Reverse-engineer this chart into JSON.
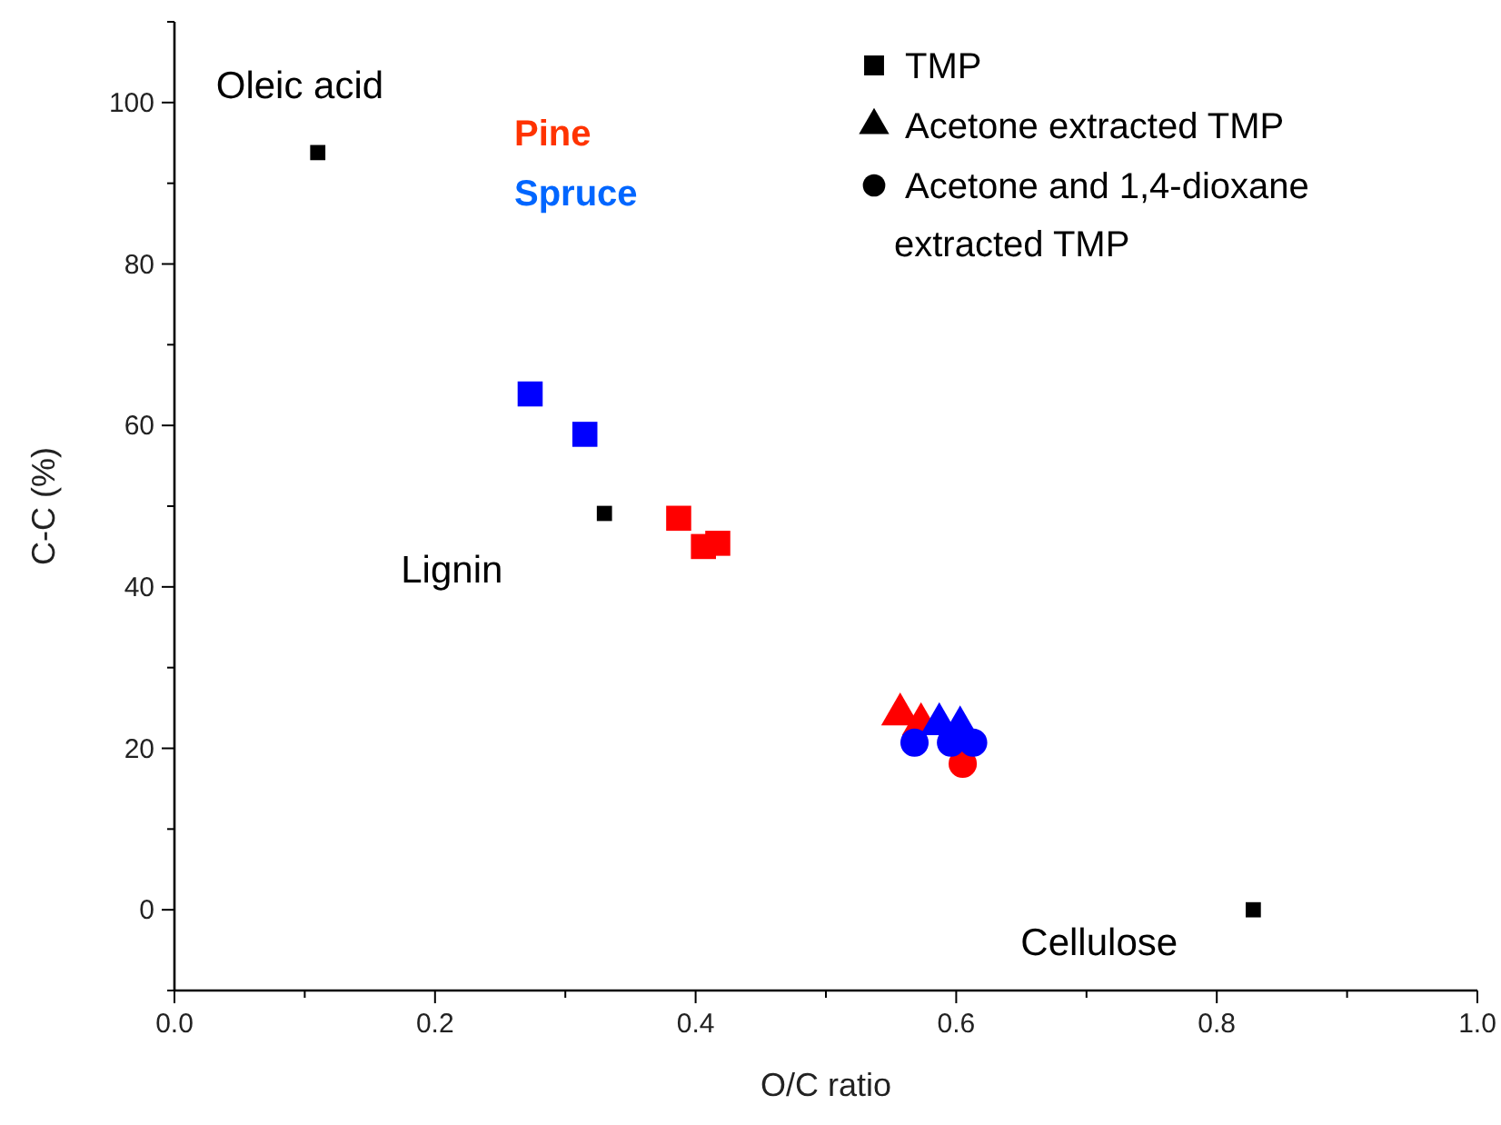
{
  "chart_data": {
    "type": "scatter",
    "xlabel": "O/C ratio",
    "ylabel": "C-C (%)",
    "xlim": [
      0,
      1
    ],
    "ylim": [
      -10,
      110
    ],
    "xticks": [
      {
        "value": 0,
        "label": "0.0"
      },
      {
        "value": 0.1,
        "label": null
      },
      {
        "value": 0.2,
        "label": "0.2"
      },
      {
        "value": 0.3,
        "label": null
      },
      {
        "value": 0.4,
        "label": "0.4"
      },
      {
        "value": 0.5,
        "label": null
      },
      {
        "value": 0.6,
        "label": "0.6"
      },
      {
        "value": 0.7,
        "label": null
      },
      {
        "value": 0.8,
        "label": "0.8"
      },
      {
        "value": 0.9,
        "label": null
      },
      {
        "value": 1,
        "label": "1.0"
      }
    ],
    "yticks": [
      {
        "value": -10,
        "label": null
      },
      0,
      {
        "value": 10,
        "label": null
      },
      20,
      {
        "value": 30,
        "label": null
      },
      40,
      {
        "value": 50,
        "label": null
      },
      60,
      {
        "value": 70,
        "label": null
      },
      80,
      {
        "value": 90,
        "label": null
      },
      100,
      {
        "value": 110,
        "label": null
      }
    ],
    "grid": false,
    "series": [
      {
        "marker": "square",
        "color": "#000000",
        "x": [
          0.11,
          0.33,
          0.828
        ],
        "values": [
          93.8,
          49.1,
          0
        ]
      },
      {
        "marker": "square",
        "x": [
          0.273,
          0.315,
          0.387,
          0.406,
          0.417
        ],
        "values": [
          63.9,
          58.9,
          48.5,
          45.0,
          45.4
        ],
        "colors": [
          "#0000ff",
          "#0000ff",
          "#ff0000",
          "#ff0000",
          "#ff0000"
        ]
      },
      {
        "marker": "triangle",
        "x": [
          0.557,
          0.573,
          0.587,
          0.603
        ],
        "values": [
          24.2,
          23.0,
          23.0,
          22.6
        ],
        "colors": [
          "#ff0000",
          "#ff0000",
          "#0000ff",
          "#0000ff"
        ]
      },
      {
        "marker": "circle",
        "x": [
          0.605,
          0.568,
          0.596,
          0.613
        ],
        "values": [
          18.1,
          20.7,
          20.7,
          20.7
        ],
        "colors": [
          "#ff0000",
          "#0000ff",
          "#0000ff",
          "#0000ff"
        ]
      }
    ],
    "annotations": [
      {
        "text": "Oleic acid",
        "x": 0.11,
        "y": 93.8
      },
      {
        "text": "Lignin",
        "x": 0.33,
        "y": 49.1
      },
      {
        "text": "Cellulose",
        "x": 0.828,
        "y": 0
      },
      "Pine",
      "Spruce",
      "TMP",
      "Acetone extracted TMP",
      "Acetone and 1,4-dioxane extracted TMP"
    ]
  }
}
